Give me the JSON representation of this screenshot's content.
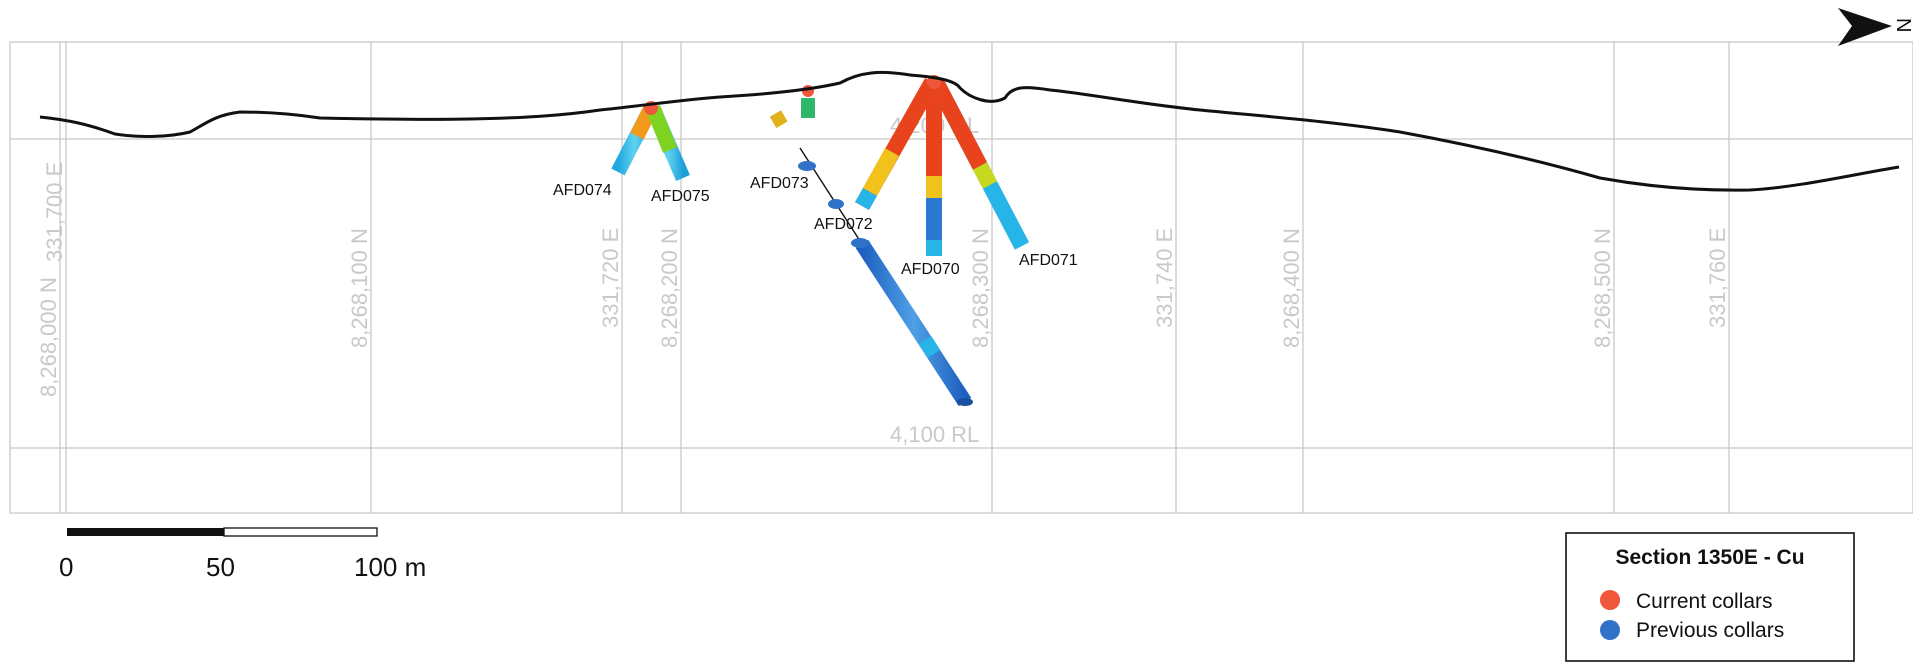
{
  "section": {
    "grid_labels": {
      "n_8268000": "8,268,000 N",
      "e_331700": "331,700 E",
      "n_8268100": "8,268,100 N",
      "e_331720": "331,720 E",
      "n_8268200": "8,268,200 N",
      "n_8268300": "8,268,300 N",
      "e_331740": "331,740 E",
      "n_8268400": "8,268,400 N",
      "n_8268500": "8,268,500 N",
      "e_331760": "331,760 E"
    },
    "rl_upper": "4,200 RL",
    "rl_lower": "4,100 RL",
    "drillholes": {
      "afd070": "AFD070",
      "afd071": "AFD071",
      "afd072": "AFD072",
      "afd073": "AFD073",
      "afd074": "AFD074",
      "afd075": "AFD075"
    }
  },
  "scale_bar": {
    "label_0": "0",
    "label_50": "50",
    "label_100": "100 m"
  },
  "north_arrow": {
    "label": "N"
  },
  "legend": {
    "title": "Section 1350E - Cu",
    "current": {
      "label": "Current collars",
      "color": "#f0573a"
    },
    "previous": {
      "label": "Previous collars",
      "color": "#2f72c8"
    }
  },
  "colors": {
    "grid": "#c8c8c8",
    "topography": "#111111",
    "cu_high": "#cc2a1a",
    "cu_mid": "#f2c21c",
    "cu_low": "#27b4e6",
    "cu_min": "#2d79d1"
  }
}
